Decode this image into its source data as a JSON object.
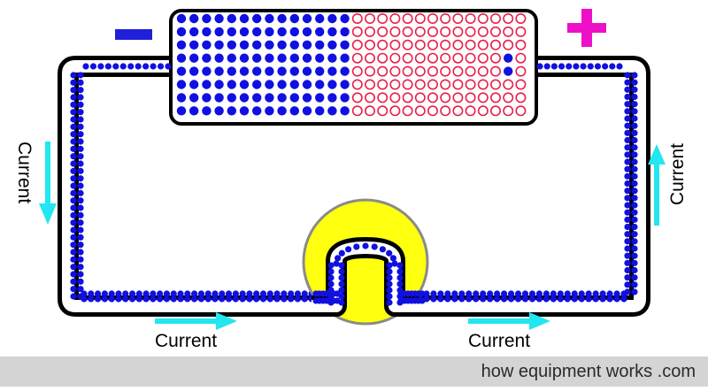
{
  "diagram": {
    "negative_terminal": "−",
    "positive_terminal": "+",
    "labels": {
      "left": "Current",
      "right": "Current",
      "bottom_left": "Current",
      "bottom_right": "Current"
    },
    "colors": {
      "electron": "#1010e0",
      "hole": "#e8204a",
      "wire_outline": "#000000",
      "current_arrow": "#22e6f0",
      "negative_sign": "#2020d8",
      "positive_sign": "#ee10c8",
      "bulb": "#ffff10",
      "bulb_rim": "#8a8a8a",
      "footer_bg": "#d4d4d4"
    },
    "icons": [
      "current-arrow-down",
      "current-arrow-up",
      "current-arrow-right",
      "minus-sign",
      "plus-sign"
    ]
  },
  "footer": {
    "credit": "how equipment works .com"
  }
}
